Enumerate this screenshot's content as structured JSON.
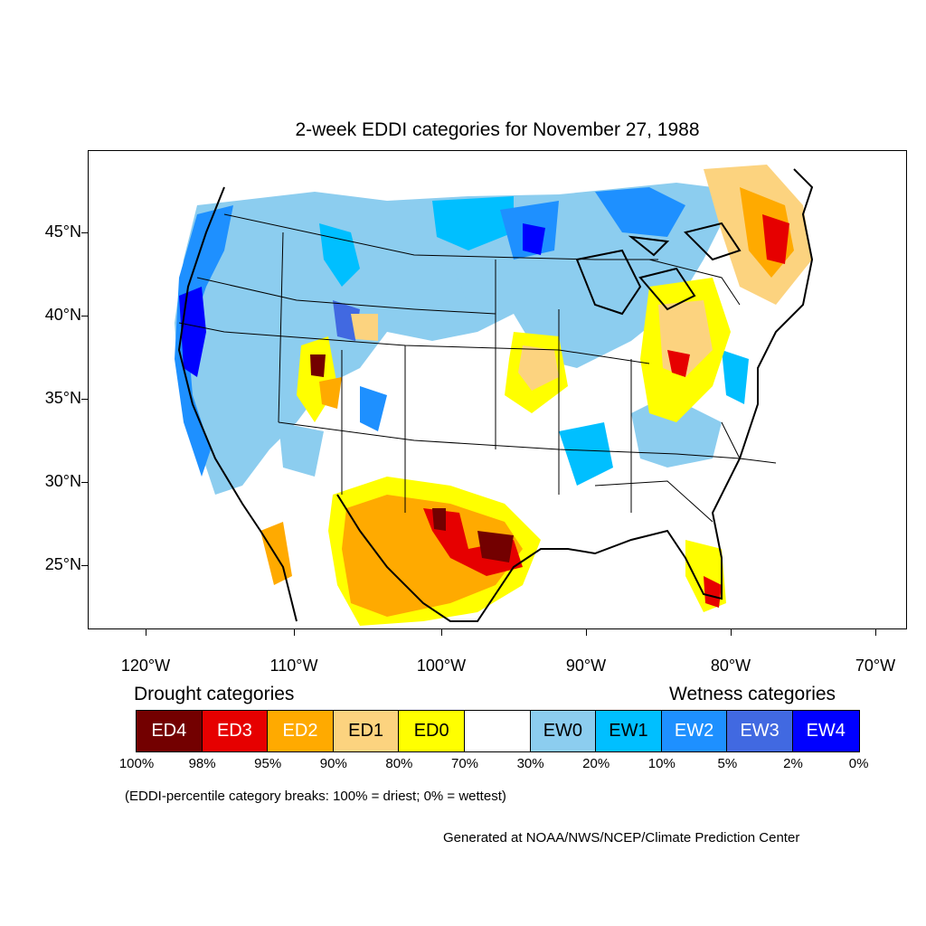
{
  "title": "2-week EDDI categories for November 27, 1988",
  "map": {
    "lat_labels": [
      "45°N",
      "40°N",
      "35°N",
      "30°N",
      "25°N"
    ],
    "lon_labels": [
      "120°W",
      "110°W",
      "100°W",
      "90°W",
      "80°W",
      "70°W"
    ]
  },
  "legend": {
    "drought_heading": "Drought categories",
    "wetness_heading": "Wetness categories",
    "categories": [
      {
        "label": "ED4",
        "color": "#730000",
        "text_color": "#ffffff"
      },
      {
        "label": "ED3",
        "color": "#e60000",
        "text_color": "#ffffff"
      },
      {
        "label": "ED2",
        "color": "#ffaa00",
        "text_color": "#ffffff"
      },
      {
        "label": "ED1",
        "color": "#fcd37f",
        "text_color": "#000000"
      },
      {
        "label": "ED0",
        "color": "#ffff00",
        "text_color": "#000000"
      },
      {
        "label": "",
        "color": "#ffffff",
        "text_color": "#000000"
      },
      {
        "label": "EW0",
        "color": "#8ccdef",
        "text_color": "#000000"
      },
      {
        "label": "EW1",
        "color": "#00bfff",
        "text_color": "#000000"
      },
      {
        "label": "EW2",
        "color": "#1e90ff",
        "text_color": "#ffffff"
      },
      {
        "label": "EW3",
        "color": "#4169e1",
        "text_color": "#ffffff"
      },
      {
        "label": "EW4",
        "color": "#0000ff",
        "text_color": "#ffffff"
      }
    ],
    "breaks": [
      "100%",
      "98%",
      "95%",
      "90%",
      "80%",
      "70%",
      "30%",
      "20%",
      "10%",
      "5%",
      "2%",
      "0%"
    ]
  },
  "note": "(EDDI-percentile category breaks: 100% = driest; 0% = wettest)",
  "credit": "Generated at NOAA/NWS/NCEP/Climate Prediction Center"
}
